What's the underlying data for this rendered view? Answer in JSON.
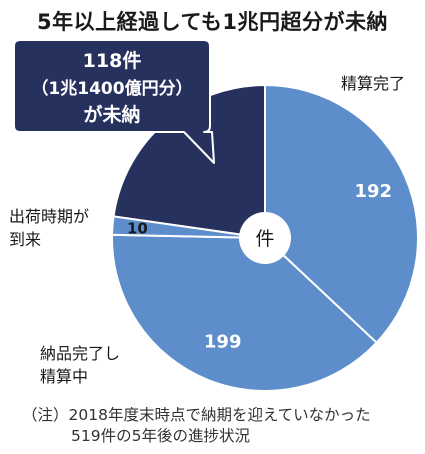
{
  "title": "5年以上経過しても1兆円超分が未納",
  "colors": {
    "dark_navy": "#27315e",
    "blue": "#5d8ecb",
    "center_bg": "#ffffff",
    "stroke": "#ffffff"
  },
  "chart_data": {
    "type": "pie",
    "title": "5年以上経過しても1兆円超分が未納",
    "unit": "件",
    "start_angle_deg": 0,
    "direction": "clockwise",
    "slices": [
      {
        "label": "精算完了",
        "value": 192,
        "color": "#5d8ecb",
        "value_color": "#ffffff"
      },
      {
        "label": "納品完了し精算中",
        "value": 199,
        "color": "#5d8ecb",
        "value_color": "#ffffff"
      },
      {
        "label": "出荷時期が到来",
        "value": 10,
        "color": "#5d8ecb",
        "value_color": "#1a1a1a"
      },
      {
        "label": "未納",
        "value": 118,
        "color": "#27315e",
        "value_color": "#ffffff"
      }
    ],
    "callout": {
      "line1": "118件",
      "line2": "（1兆1400億円分）",
      "line3": "が未納"
    },
    "note": {
      "line1": "（注）2018年度末時点で納期を迎えていなかった",
      "line2": "519件の5年後の進捗状況"
    }
  }
}
